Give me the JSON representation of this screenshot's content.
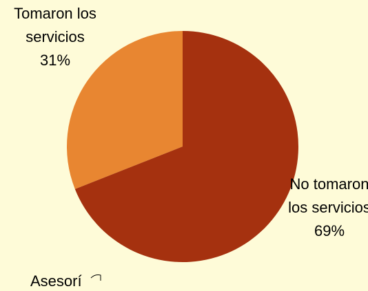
{
  "chart_data": {
    "type": "pie",
    "categories": [
      "No tomaron los servicios",
      "Tomaron los servicios"
    ],
    "values": [
      69,
      31
    ],
    "value_labels": [
      "69%",
      "31%"
    ],
    "colors": [
      "#a5310f",
      "#e88631"
    ],
    "annotation": "Asesorí"
  }
}
